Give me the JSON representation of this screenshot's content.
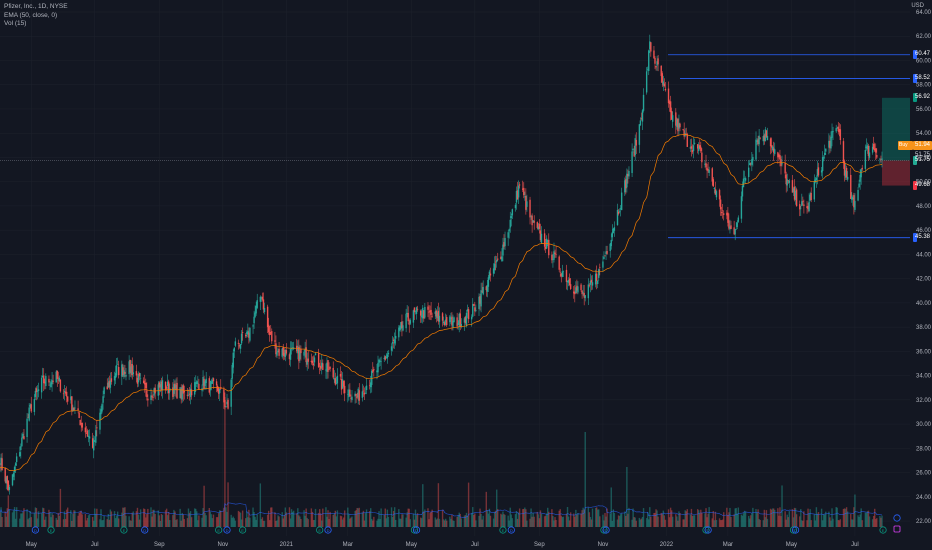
{
  "legend": {
    "symbol": "Pfizer, Inc., 1D, NYSE",
    "ema": "EMA (50, close, 0)",
    "vol": "Vol (15)"
  },
  "currency": "USD",
  "chart_data": {
    "type": "candlestick",
    "y_ticks": [
      "64.00",
      "62.00",
      "60.00",
      "58.00",
      "56.00",
      "54.00",
      "52.00",
      "50.00",
      "48.00",
      "46.00",
      "44.00",
      "42.00",
      "40.00",
      "38.00",
      "36.00",
      "34.00",
      "32.00",
      "30.00",
      "28.00",
      "26.00",
      "24.00",
      "22.00"
    ],
    "x_ticks": [
      "May",
      "Jul",
      "Sep",
      "Nov",
      "2021",
      "Mar",
      "May",
      "Jul",
      "Sep",
      "Nov",
      "2022",
      "Mar",
      "May",
      "Jul"
    ],
    "ylim": [
      21,
      65
    ],
    "price_path": [
      [
        "2020-04-01",
        27
      ],
      [
        "2020-04-10",
        24.5
      ],
      [
        "2020-04-20",
        28
      ],
      [
        "2020-05-01",
        31.5
      ],
      [
        "2020-05-12",
        33.5
      ],
      [
        "2020-05-25",
        33.8
      ],
      [
        "2020-06-10",
        31.5
      ],
      [
        "2020-06-20",
        29.8
      ],
      [
        "2020-06-30",
        28.2
      ],
      [
        "2020-07-10",
        32.5
      ],
      [
        "2020-07-22",
        34.5
      ],
      [
        "2020-08-05",
        34.6
      ],
      [
        "2020-08-20",
        32.5
      ],
      [
        "2020-09-05",
        33.2
      ],
      [
        "2020-09-25",
        32.4
      ],
      [
        "2020-10-10",
        33.5
      ],
      [
        "2020-10-28",
        32.8
      ],
      [
        "2020-11-06",
        31.2
      ],
      [
        "2020-11-12",
        36.5
      ],
      [
        "2020-11-25",
        37.2
      ],
      [
        "2020-12-08",
        40.8
      ],
      [
        "2020-12-15",
        37.5
      ],
      [
        "2020-12-24",
        36.0
      ],
      [
        "2021-01-10",
        35.8
      ],
      [
        "2021-01-25",
        35.6
      ],
      [
        "2021-02-10",
        34.4
      ],
      [
        "2021-02-26",
        33.0
      ],
      [
        "2021-03-10",
        32.2
      ],
      [
        "2021-03-25",
        34.0
      ],
      [
        "2021-04-10",
        36.0
      ],
      [
        "2021-04-25",
        38.5
      ],
      [
        "2021-05-10",
        39.3
      ],
      [
        "2021-05-25",
        38.8
      ],
      [
        "2021-06-10",
        38.3
      ],
      [
        "2021-06-28",
        39.2
      ],
      [
        "2021-07-12",
        41.5
      ],
      [
        "2021-07-25",
        43.8
      ],
      [
        "2021-08-05",
        47.0
      ],
      [
        "2021-08-13",
        49.8
      ],
      [
        "2021-08-25",
        46.5
      ],
      [
        "2021-09-05",
        45.2
      ],
      [
        "2021-09-20",
        43.0
      ],
      [
        "2021-10-05",
        41.2
      ],
      [
        "2021-10-15",
        40.5
      ],
      [
        "2021-10-28",
        42.5
      ],
      [
        "2021-11-05",
        44.5
      ],
      [
        "2021-11-20",
        49.0
      ],
      [
        "2021-12-05",
        54.0
      ],
      [
        "2021-12-12",
        58.0
      ],
      [
        "2021-12-16",
        61.2
      ],
      [
        "2021-12-27",
        58.5
      ],
      [
        "2022-01-05",
        55.5
      ],
      [
        "2022-01-20",
        53.5
      ],
      [
        "2022-02-01",
        52.5
      ],
      [
        "2022-02-12",
        50.5
      ],
      [
        "2022-02-25",
        47.2
      ],
      [
        "2022-03-07",
        45.5
      ],
      [
        "2022-03-15",
        49.5
      ],
      [
        "2022-03-28",
        53.5
      ],
      [
        "2022-04-08",
        54.0
      ],
      [
        "2022-04-20",
        51.5
      ],
      [
        "2022-05-02",
        49.0
      ],
      [
        "2022-05-15",
        47.5
      ],
      [
        "2022-05-26",
        50.5
      ],
      [
        "2022-06-05",
        53.0
      ],
      [
        "2022-06-15",
        54.5
      ],
      [
        "2022-06-22",
        50.5
      ],
      [
        "2022-06-30",
        47.8
      ],
      [
        "2022-07-10",
        52.5
      ],
      [
        "2022-07-20",
        52.8
      ],
      [
        "2022-07-27",
        51.75
      ]
    ],
    "ema_label": "EMA (50, close, 0)",
    "volume_label": "Vol (15)",
    "horizontal_lines": [
      60.47,
      58.52,
      45.38
    ],
    "current_price_line": 51.75,
    "position": {
      "entry": 51.75,
      "target": 56.92,
      "stop": 49.68
    }
  },
  "price_tags": [
    {
      "name": "high-line-tag",
      "text": "60.47",
      "value": 60.47,
      "color": "#2962ff"
    },
    {
      "name": "resistance-line-tag",
      "text": "58.52",
      "value": 58.52,
      "color": "#2962ff"
    },
    {
      "name": "target-tag",
      "text": "56.92",
      "value": 56.92,
      "color": "#089981"
    },
    {
      "name": "current-price-tag",
      "text": "51.75",
      "value": 51.75,
      "color": "#22ab94"
    },
    {
      "name": "stop-tag",
      "text": "49.68",
      "value": 49.68,
      "color": "#f23645"
    },
    {
      "name": "support-line-tag",
      "text": "45.38",
      "value": 45.38,
      "color": "#2962ff"
    }
  ],
  "position_tags": {
    "entry_box": "51.94",
    "entry_box_label": "Buy",
    "entry_text": "51.75"
  },
  "event_badges": {
    "dividend": "D",
    "earnings": "E"
  }
}
